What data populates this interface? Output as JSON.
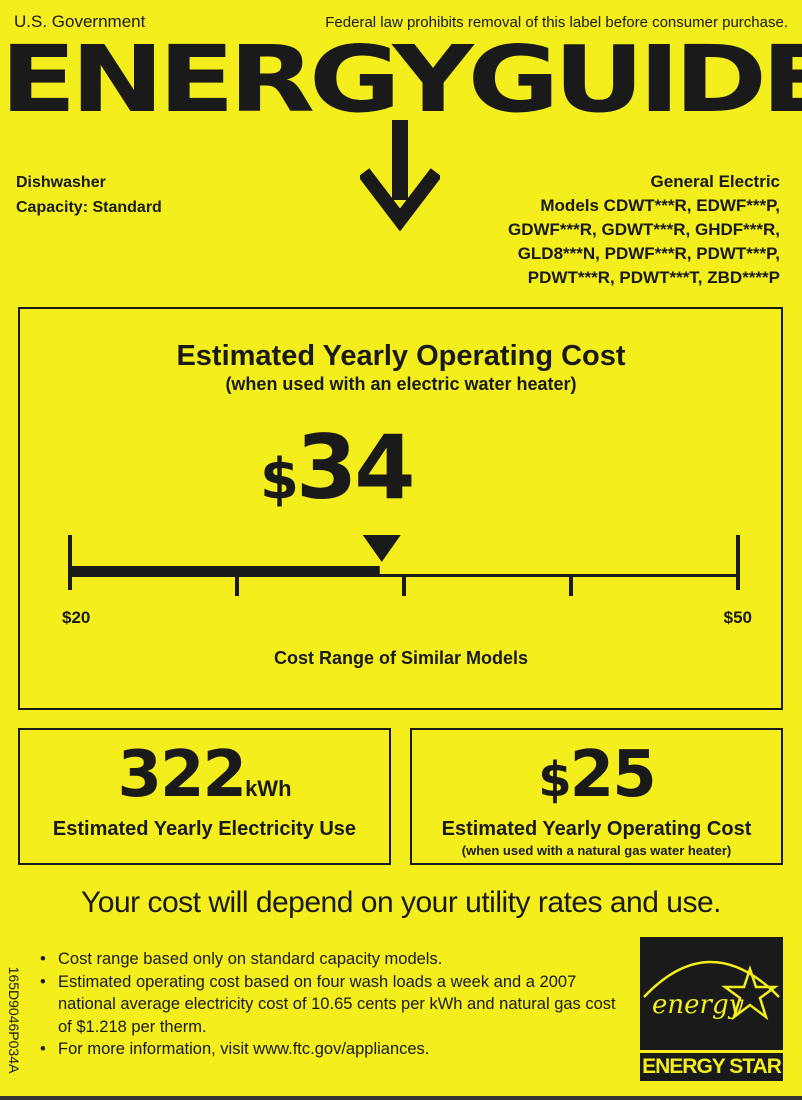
{
  "header": {
    "government": "U.S. Government",
    "law_notice": "Federal law prohibits removal of this label before consumer purchase.",
    "title": "ENERGYGUIDE"
  },
  "appliance": {
    "type": "Dishwasher",
    "capacity": "Capacity: Standard"
  },
  "manufacturer": {
    "name": "General Electric",
    "model_lines": [
      "Models CDWT***R, EDWF***P,",
      "GDWF***R, GDWT***R, GHDF***R,",
      "GLD8***N, PDWF***R, PDWT***P,",
      "PDWT***R, PDWT***T, ZBD****P"
    ]
  },
  "operating_cost": {
    "heading": "Estimated Yearly Operating Cost",
    "subheading": "(when used with an electric water heater)",
    "currency": "$",
    "value": "34",
    "scale_min_label": "$20",
    "scale_max_label": "$50",
    "scale_min": 20,
    "scale_max": 50,
    "scale_value": 34,
    "range_label": "Cost Range of Similar Models"
  },
  "electricity": {
    "value": "322",
    "unit": "kWh",
    "label": "Estimated Yearly Electricity Use"
  },
  "gas_cost": {
    "currency": "$",
    "value": "25",
    "label": "Estimated Yearly Operating Cost",
    "sublabel": "(when used with a natural gas water heater)"
  },
  "depend_text": "Your cost will depend on your utility rates and use.",
  "notes": [
    "Cost range based only on standard capacity models.",
    "Estimated operating cost based on four wash loads a week and a 2007 national average electricity cost of 10.65 cents per kWh and natural gas cost of $1.218 per therm.",
    "For more information, visit www.ftc.gov/appliances."
  ],
  "label_code": "165D9046P034A",
  "energy_star": {
    "script": "energy",
    "label": "ENERGY STAR"
  },
  "colors": {
    "background": "#f4ee1c",
    "ink": "#1a1a1a"
  }
}
